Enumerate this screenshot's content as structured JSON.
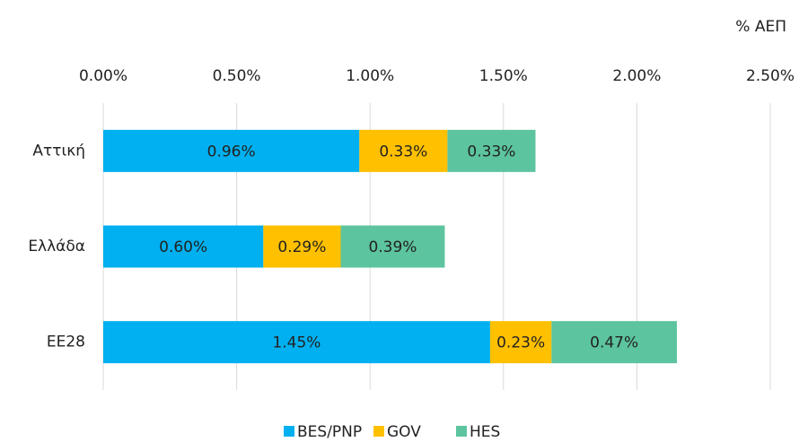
{
  "chart_data": {
    "type": "stacked-bar-horizontal",
    "axis_label": "% ΑΕΠ",
    "categories": [
      "Αττική",
      "Ελλάδα",
      "ΕΕ28"
    ],
    "series": [
      {
        "name": "BES/PNP",
        "color": "#00b0f0",
        "values": [
          0.96,
          0.6,
          1.45
        ],
        "value_labels": [
          "0.96%",
          "0.60%",
          "1.45%"
        ]
      },
      {
        "name": "GOV",
        "color": "#ffc000",
        "values": [
          0.33,
          0.29,
          0.23
        ],
        "value_labels": [
          "0.33%",
          "0.29%",
          "0.23%"
        ]
      },
      {
        "name": "HES",
        "color": "#5cc49e",
        "values": [
          0.33,
          0.39,
          0.47
        ],
        "value_labels": [
          "0.33%",
          "0.39%",
          "0.47%"
        ]
      }
    ],
    "xlim": [
      0,
      2.5
    ],
    "xticks": [
      {
        "value": 0,
        "label": "0.00%"
      },
      {
        "value": 0.5,
        "label": "0.50%"
      },
      {
        "value": 1,
        "label": "1.00%"
      },
      {
        "value": 1.5,
        "label": "1.50%"
      },
      {
        "value": 2,
        "label": "2.00%"
      },
      {
        "value": 2.5,
        "label": "2.50%"
      }
    ],
    "grid": true
  }
}
